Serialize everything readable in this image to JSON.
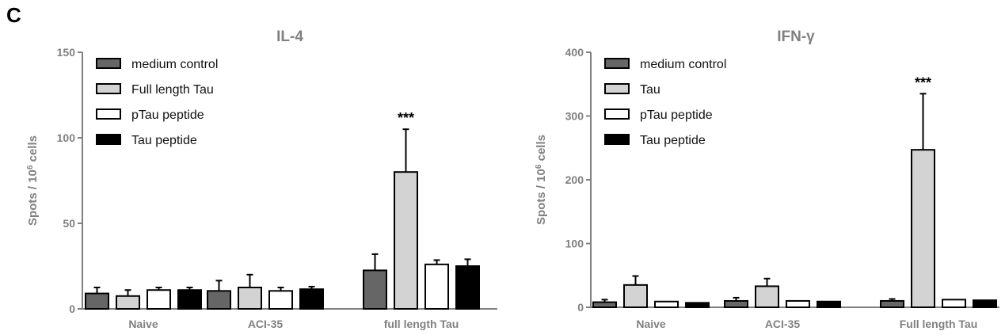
{
  "panel_label": "C",
  "chart_data": [
    {
      "type": "bar",
      "title": "IL-4",
      "ylabel": "Spots / 10^6 cells",
      "ylabel_prefix": "Spots / 10",
      "ylabel_sup": "6",
      "ylabel_suffix": " cells",
      "ylim": [
        0,
        150
      ],
      "yticks": [
        0,
        50,
        100,
        150
      ],
      "categories": [
        "Naive",
        "ACI-35",
        "full length Tau"
      ],
      "legend_position": "top-left",
      "series": [
        {
          "name": "medium control",
          "color": "#666666",
          "values": [
            9,
            10.5,
            22.5
          ],
          "errors": [
            3.5,
            6,
            9.5
          ]
        },
        {
          "name": "Full length Tau",
          "color": "#d3d3d3",
          "values": [
            7.5,
            12.5,
            80
          ],
          "errors": [
            3.5,
            7.5,
            25
          ]
        },
        {
          "name": "pTau peptide",
          "color": "#ffffff",
          "values": [
            11,
            10.5,
            26
          ],
          "errors": [
            1.5,
            2,
            2.5
          ]
        },
        {
          "name": "Tau peptide",
          "color": "#000000",
          "values": [
            11,
            11.5,
            25
          ],
          "errors": [
            1.5,
            1.5,
            4
          ]
        }
      ],
      "annotations": [
        {
          "text": "***",
          "category": 2,
          "series": 1
        }
      ]
    },
    {
      "type": "bar",
      "title": "IFN-γ",
      "ylabel": "Spots / 10^6 cells",
      "ylabel_prefix": "Spots / 10",
      "ylabel_sup": "6",
      "ylabel_suffix": " cells",
      "ylim": [
        0,
        400
      ],
      "yticks": [
        0,
        100,
        200,
        300,
        400
      ],
      "categories": [
        "Naive",
        "ACI-35",
        "Full length Tau"
      ],
      "legend_position": "top-left",
      "series": [
        {
          "name": "medium control",
          "color": "#666666",
          "values": [
            8,
            10,
            10
          ],
          "errors": [
            4,
            5,
            3
          ]
        },
        {
          "name": "Tau",
          "color": "#d3d3d3",
          "values": [
            35,
            33,
            247
          ],
          "errors": [
            14,
            12,
            88
          ]
        },
        {
          "name": "pTau peptide",
          "color": "#ffffff",
          "values": [
            9,
            10,
            12
          ],
          "errors": [
            0,
            0,
            0
          ]
        },
        {
          "name": "Tau peptide",
          "color": "#000000",
          "values": [
            7,
            9,
            11
          ],
          "errors": [
            0,
            0,
            0
          ]
        }
      ],
      "annotations": [
        {
          "text": "***",
          "category": 2,
          "series": 1
        }
      ]
    }
  ]
}
